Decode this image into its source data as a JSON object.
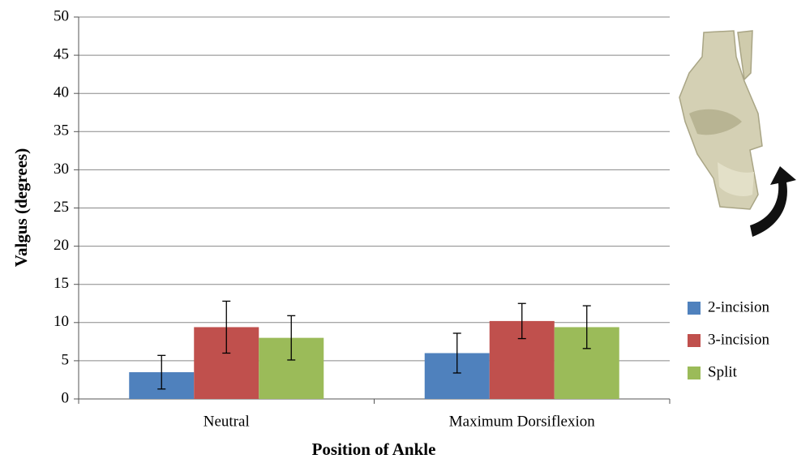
{
  "chart_data": {
    "type": "bar",
    "x_label": "Position of Ankle",
    "y_label": "Valgus (degrees)",
    "categories": [
      "Neutral",
      "Maximum Dorsiflexion"
    ],
    "series": [
      {
        "name": "2-incision",
        "color": "#4f81bd",
        "values": [
          3.5,
          6.0
        ],
        "errors": [
          2.2,
          2.6
        ]
      },
      {
        "name": "3-incision",
        "color": "#c0504d",
        "values": [
          9.4,
          10.2
        ],
        "errors": [
          3.4,
          2.3
        ]
      },
      {
        "name": "Split",
        "color": "#9bbb59",
        "values": [
          8.0,
          9.4
        ],
        "errors": [
          2.9,
          2.8
        ]
      }
    ],
    "ylim": [
      0,
      50
    ],
    "yticks": [
      0,
      5,
      10,
      15,
      20,
      25,
      30,
      35,
      40,
      45,
      50
    ],
    "grid": true,
    "legend": "right"
  }
}
